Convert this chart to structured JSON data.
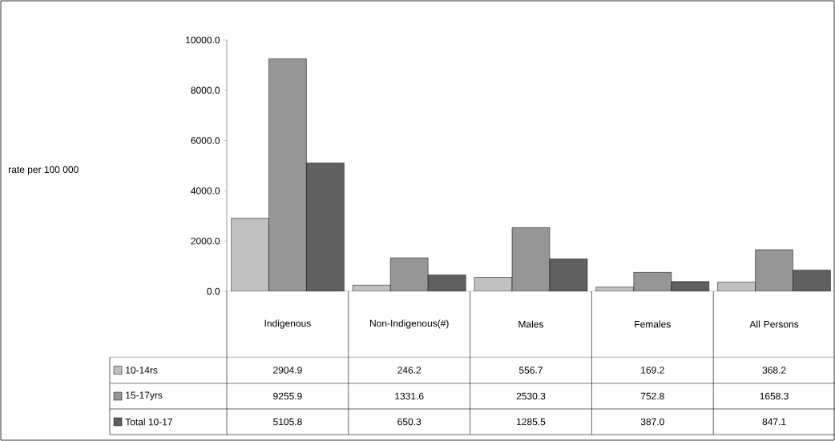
{
  "chart_data": {
    "type": "bar",
    "annotations": [
      "rate per 100 000"
    ],
    "categories": [
      "Indigenous",
      "Non-Indigenous(#)",
      "Males",
      "Females",
      "All Persons"
    ],
    "series": [
      {
        "name": "10-14rs",
        "color": "#c0c0c0",
        "values": [
          2904.9,
          246.2,
          556.7,
          169.2,
          368.2
        ],
        "value_labels": [
          "2904.9",
          "246.2",
          "556.7",
          "169.2",
          "368.2"
        ]
      },
      {
        "name": "15-17yrs",
        "color": "#969696",
        "values": [
          9255.9,
          1331.6,
          2530.3,
          752.8,
          1658.3
        ],
        "value_labels": [
          "9255.9",
          "1331.6",
          "2530.3",
          "752.8",
          "1658.3"
        ]
      },
      {
        "name": "Total 10-17",
        "color": "#606060",
        "values": [
          5105.8,
          650.3,
          1285.5,
          387.0,
          847.1
        ],
        "value_labels": [
          "5105.8",
          "650.3",
          "1285.5",
          "387.0",
          "847.1"
        ]
      }
    ],
    "ylim": [
      0,
      10000
    ],
    "yticks": [
      {
        "value": 0,
        "label": "0.0"
      },
      {
        "value": 2000,
        "label": "2000.0"
      },
      {
        "value": 4000,
        "label": "4000.0"
      },
      {
        "value": 6000,
        "label": "6000.0"
      },
      {
        "value": 8000,
        "label": "8000.0"
      },
      {
        "value": 10000,
        "label": "10000.0"
      }
    ],
    "legend": "bottom left",
    "grid": false
  }
}
